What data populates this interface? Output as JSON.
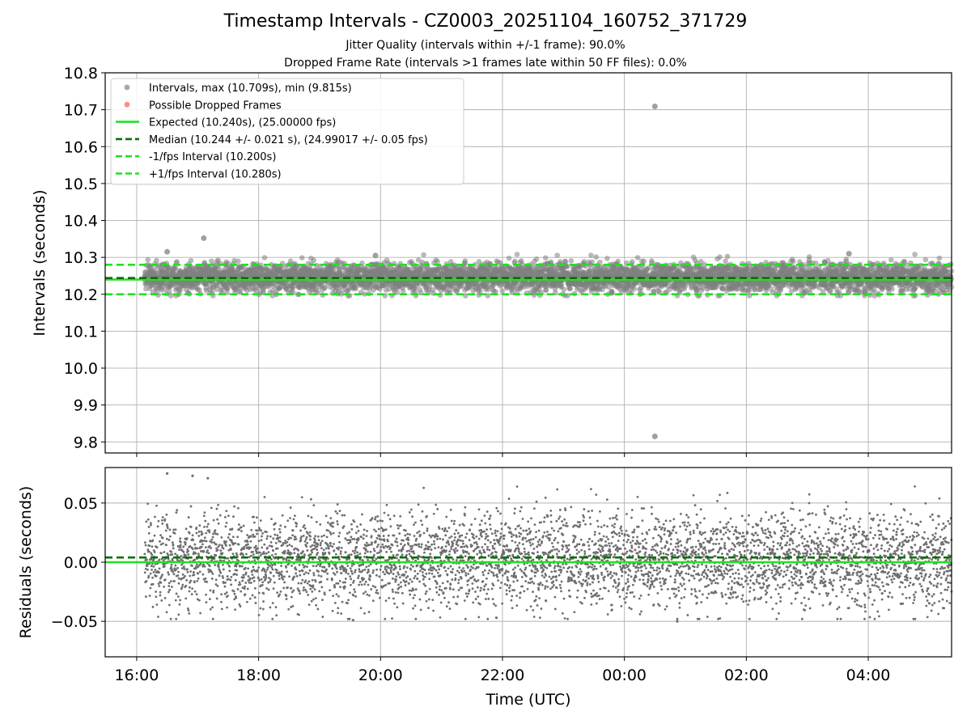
{
  "title": "Timestamp Intervals - CZ0003_20251104_160752_371729",
  "subtitle_1": "Jitter Quality (intervals within +/-1 frame): 90.0%",
  "subtitle_2": "Dropped Frame Rate (intervals >1 frames late within 50 FF files): 0.0%",
  "chart_data": [
    {
      "type": "scatter",
      "name": "intervals",
      "ylabel": "Intervals (seconds)",
      "xlim": [
        "2025-11-04T15:29:00",
        "2025-11-05T05:22:00"
      ],
      "ylim": [
        9.77,
        10.8
      ],
      "yticks": [
        "9.8",
        "9.9",
        "10.0",
        "10.1",
        "10.2",
        "10.3",
        "10.4",
        "10.5",
        "10.6",
        "10.7",
        "10.8"
      ],
      "grid": true,
      "legend_position": "upper left",
      "legend": [
        {
          "label": "Intervals, max (10.709s), min (9.815s)",
          "kind": "marker",
          "color": "#808080"
        },
        {
          "label": "Possible Dropped Frames",
          "kind": "marker",
          "color": "#ff5a5a"
        },
        {
          "label": "Expected (10.240s), (25.00000 fps)",
          "kind": "solid",
          "color": "#22e022"
        },
        {
          "label": "Median (10.244 +/- 0.021 s), (24.99017 +/- 0.05 fps)",
          "kind": "dashed",
          "color": "#0a6e0a"
        },
        {
          "label": "-1/fps Interval (10.200s)",
          "kind": "dashed",
          "color": "#22e022"
        },
        {
          "label": "+1/fps Interval (10.280s)",
          "kind": "dashed",
          "color": "#22e022"
        }
      ],
      "reference_lines": [
        {
          "name": "expected",
          "y": 10.24,
          "style": "solid",
          "color": "#22e022"
        },
        {
          "name": "median",
          "y": 10.244,
          "style": "dashed",
          "color": "#0a6e0a"
        },
        {
          "name": "minus-one-fps",
          "y": 10.2,
          "style": "dashed",
          "color": "#22e022"
        },
        {
          "name": "plus-one-fps",
          "y": 10.28,
          "style": "dashed",
          "color": "#22e022"
        }
      ],
      "series": [
        {
          "name": "Intervals",
          "color": "#808080",
          "summary": {
            "count": 4900,
            "x_start": "2025-11-04T16:07:52",
            "x_end": "2025-11-05T05:22:00",
            "median": 10.244,
            "std": 0.021,
            "max": 10.709,
            "min": 9.815
          },
          "points": [
            {
              "x": "2025-11-05T00:30:00",
              "y": 10.709
            },
            {
              "x": "2025-11-05T00:30:00",
              "y": 9.815
            },
            {
              "x": "2025-11-04T17:06:00",
              "y": 10.352
            },
            {
              "x": "2025-11-04T16:30:00",
              "y": 10.315
            },
            {
              "x": "2025-11-05T03:41:00",
              "y": 10.31
            },
            {
              "x": "2025-11-04T19:55:00",
              "y": 10.305
            }
          ]
        }
      ]
    },
    {
      "type": "scatter",
      "name": "residuals",
      "xlabel": "Time (UTC)",
      "ylabel": "Residuals (seconds)",
      "xlim": [
        "2025-11-04T15:29:00",
        "2025-11-05T05:22:00"
      ],
      "xticks": [
        "16:00",
        "18:00",
        "20:00",
        "22:00",
        "00:00",
        "02:00",
        "04:00"
      ],
      "ylim": [
        -0.08,
        0.08
      ],
      "yticks": [
        "−0.05",
        "0.00",
        "0.05"
      ],
      "grid": true,
      "reference_lines": [
        {
          "name": "zero",
          "y": 0.0,
          "style": "solid",
          "color": "#22e022"
        },
        {
          "name": "median-offset",
          "y": 0.004,
          "style": "dashed",
          "color": "#0a6e0a"
        }
      ],
      "series": [
        {
          "name": "Residuals",
          "color": "#6e6e6e",
          "summary": {
            "count": 4900,
            "x_start": "2025-11-04T16:07:52",
            "x_end": "2025-11-05T05:22:00",
            "median": 0.004,
            "std": 0.021
          },
          "points": [
            {
              "x": "2025-11-04T16:30:00",
              "y": 0.075
            },
            {
              "x": "2025-11-04T16:55:00",
              "y": 0.073
            },
            {
              "x": "2025-11-04T17:10:00",
              "y": 0.071
            },
            {
              "x": "2025-11-05T00:52:00",
              "y": -0.05
            },
            {
              "x": "2025-11-04T19:33:00",
              "y": -0.049
            },
            {
              "x": "2025-11-04T21:54:00",
              "y": -0.047
            }
          ]
        }
      ]
    }
  ]
}
